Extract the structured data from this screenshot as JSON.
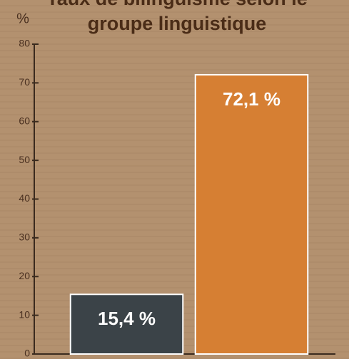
{
  "chart_data": {
    "type": "bar",
    "title": [
      "Taux de bilinguisme selon le",
      "groupe linguistique"
    ],
    "ylabel": "%",
    "categories": [
      null,
      null
    ],
    "series": [
      {
        "name": null,
        "colors": [
          "#3b4348",
          "#d67f33"
        ],
        "values": [
          15.4,
          72.1
        ],
        "value_labels": [
          "15,4 %",
          "72,1 %"
        ]
      }
    ],
    "ylim": [
      0,
      80
    ],
    "yticks": [
      0,
      10,
      20,
      30,
      40,
      50,
      60,
      70,
      80
    ]
  }
}
